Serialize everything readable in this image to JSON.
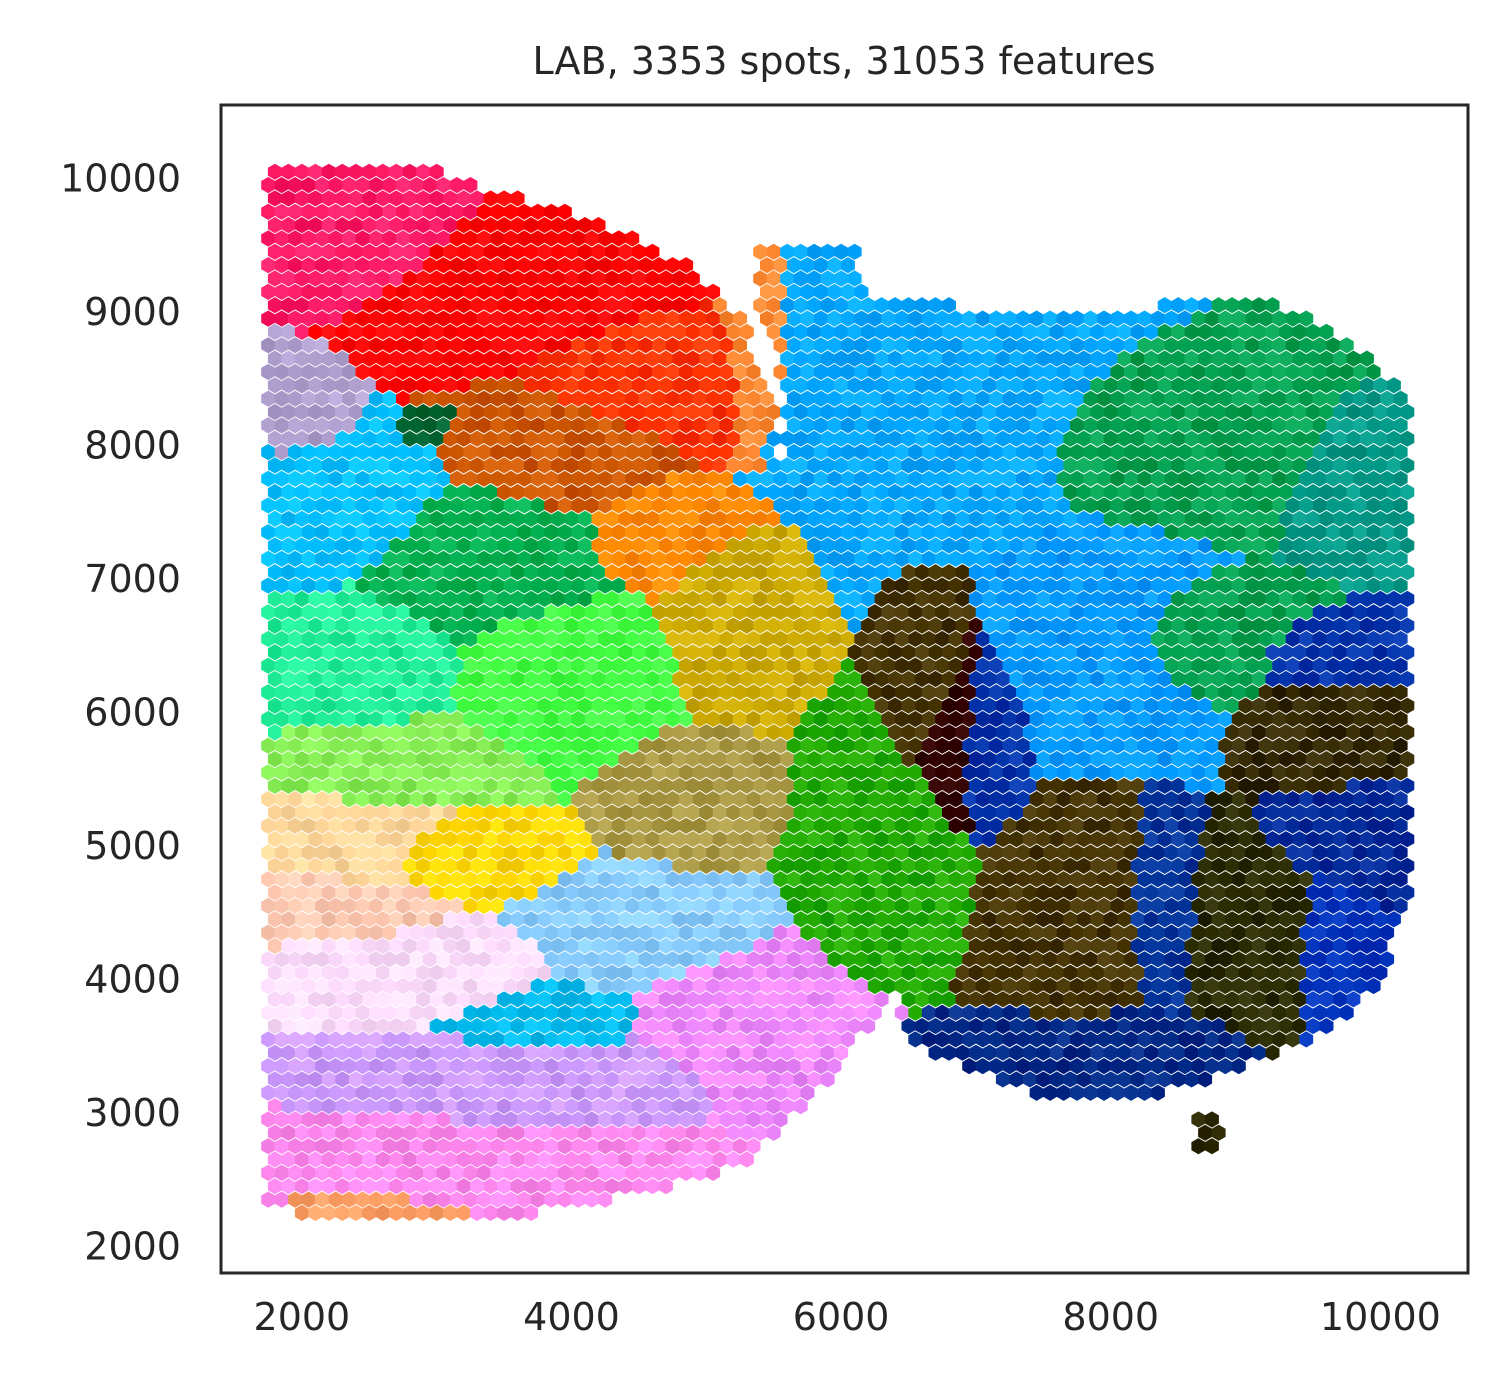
{
  "chart_data": {
    "type": "scatter",
    "title": "LAB, 3353 spots, 31053 features",
    "xlabel": "",
    "ylabel": "",
    "xlim": [
      1400,
      10650
    ],
    "ylim": [
      1800,
      10550
    ],
    "grid": false,
    "legend": "none",
    "x_ticks": [
      "2000",
      "4000",
      "6000",
      "8000",
      "10000"
    ],
    "y_ticks": [
      "2000",
      "3000",
      "4000",
      "5000",
      "6000",
      "7000",
      "8000",
      "9000",
      "10000"
    ],
    "spot_hex_radius": 60,
    "spot_grid": {
      "x_min": 1750,
      "x_max": 10250,
      "y_min": 2150,
      "y_max": 10150,
      "x_step": 100,
      "y_step": 100
    },
    "tissue_regions": [
      {
        "shape": "polygon",
        "points": [
          [
            1750,
            10150
          ],
          [
            2700,
            10150
          ],
          [
            3500,
            9900
          ],
          [
            4200,
            9700
          ],
          [
            4900,
            9350
          ],
          [
            5300,
            8900
          ],
          [
            5500,
            8300
          ],
          [
            5600,
            7500
          ],
          [
            5700,
            6600
          ],
          [
            5800,
            5800
          ],
          [
            6200,
            5000
          ],
          [
            6500,
            4300
          ],
          [
            6300,
            3800
          ],
          [
            6050,
            3400
          ],
          [
            5750,
            3050
          ],
          [
            5300,
            2600
          ],
          [
            4600,
            2400
          ],
          [
            3500,
            2200
          ],
          [
            2200,
            2150
          ],
          [
            1750,
            2350
          ]
        ]
      },
      {
        "shape": "polygon",
        "points": [
          [
            5400,
            9550
          ],
          [
            6100,
            9550
          ],
          [
            6200,
            9100
          ],
          [
            6900,
            9050
          ],
          [
            8000,
            9000
          ],
          [
            9000,
            9150
          ],
          [
            9600,
            8900
          ],
          [
            10000,
            8600
          ],
          [
            10250,
            8300
          ],
          [
            10250,
            4700
          ],
          [
            10000,
            4000
          ],
          [
            9700,
            3650
          ],
          [
            9200,
            3400
          ],
          [
            8400,
            3150
          ],
          [
            7600,
            3100
          ],
          [
            7000,
            3300
          ],
          [
            6500,
            3500
          ],
          [
            6350,
            4100
          ],
          [
            6200,
            4900
          ],
          [
            5800,
            5800
          ],
          [
            5650,
            6600
          ],
          [
            5600,
            7500
          ],
          [
            5600,
            8400
          ],
          [
            5400,
            9000
          ]
        ]
      },
      {
        "shape": "polygon",
        "points": [
          [
            8650,
            2750
          ],
          [
            8850,
            2750
          ],
          [
            8850,
            3000
          ],
          [
            8650,
            3000
          ]
        ]
      }
    ],
    "color_regions": [
      {
        "label": "pink-red",
        "color": "#ff1a66",
        "cx": 2500,
        "cy": 9700,
        "rx": 800,
        "ry": 500
      },
      {
        "label": "red",
        "color": "#ff0000",
        "cx": 3800,
        "cy": 9300,
        "rx": 1100,
        "ry": 550
      },
      {
        "label": "orange-red",
        "color": "#ff3300",
        "cx": 4700,
        "cy": 8500,
        "rx": 800,
        "ry": 500
      },
      {
        "label": "burnt-orange",
        "color": "#cc5500",
        "cx": 4000,
        "cy": 7950,
        "rx": 700,
        "ry": 400
      },
      {
        "label": "orange",
        "color": "#ff8800",
        "cx": 4800,
        "cy": 7350,
        "rx": 550,
        "ry": 350
      },
      {
        "label": "light-orange",
        "color": "#ff8833",
        "cx": 5350,
        "cy": 8700,
        "rx": 250,
        "ry": 700
      },
      {
        "label": "mauve",
        "color": "#b0a0d0",
        "cx": 1950,
        "cy": 8300,
        "rx": 300,
        "ry": 300
      },
      {
        "label": "dark-green-spot",
        "color": "#006633",
        "cx": 2950,
        "cy": 8150,
        "rx": 150,
        "ry": 100
      },
      {
        "label": "sky-blue-left",
        "color": "#00bfff",
        "cx": 2300,
        "cy": 7500,
        "rx": 650,
        "ry": 450
      },
      {
        "label": "green-mid",
        "color": "#00b050",
        "cx": 3300,
        "cy": 7100,
        "rx": 800,
        "ry": 500
      },
      {
        "label": "aqua-green",
        "color": "#22ee99",
        "cx": 2400,
        "cy": 6400,
        "rx": 700,
        "ry": 450
      },
      {
        "label": "lime",
        "color": "#44ff44",
        "cx": 3900,
        "cy": 6300,
        "rx": 650,
        "ry": 500
      },
      {
        "label": "yellow-green",
        "color": "#88ee55",
        "cx": 2700,
        "cy": 5600,
        "rx": 700,
        "ry": 300
      },
      {
        "label": "olive-yellow",
        "color": "#ccaa00",
        "cx": 5200,
        "cy": 6800,
        "rx": 400,
        "ry": 600
      },
      {
        "label": "olive-mid",
        "color": "#aa9944",
        "cx": 4900,
        "cy": 5300,
        "rx": 500,
        "ry": 400
      },
      {
        "label": "tan",
        "color": "#ffd79a",
        "cx": 2400,
        "cy": 5050,
        "rx": 700,
        "ry": 300
      },
      {
        "label": "gold",
        "color": "#ffd700",
        "cx": 3250,
        "cy": 4950,
        "rx": 600,
        "ry": 250
      },
      {
        "label": "peach",
        "color": "#ffc8b0",
        "cx": 2200,
        "cy": 4500,
        "rx": 600,
        "ry": 250
      },
      {
        "label": "lavender-pale",
        "color": "#ffddff",
        "cx": 2700,
        "cy": 4050,
        "rx": 900,
        "ry": 300
      },
      {
        "label": "light-blue",
        "color": "#88ccff",
        "cx": 4600,
        "cy": 4400,
        "rx": 700,
        "ry": 400
      },
      {
        "label": "cyan-blue",
        "color": "#00bbee",
        "cx": 3800,
        "cy": 3650,
        "rx": 600,
        "ry": 250
      },
      {
        "label": "lilac",
        "color": "#cc99ff",
        "cx": 3800,
        "cy": 3200,
        "rx": 1400,
        "ry": 350
      },
      {
        "label": "violet",
        "color": "#ee88ff",
        "cx": 5300,
        "cy": 3600,
        "rx": 700,
        "ry": 600
      },
      {
        "label": "pink",
        "color": "#ff88ee",
        "cx": 3300,
        "cy": 2650,
        "rx": 1600,
        "ry": 350
      },
      {
        "label": "salmon-edge",
        "color": "#ffa066",
        "cx": 2500,
        "cy": 2250,
        "rx": 700,
        "ry": 120
      },
      {
        "label": "azure",
        "color": "#00a6ff",
        "cx": 6600,
        "cy": 8500,
        "rx": 1200,
        "ry": 900
      },
      {
        "label": "teal",
        "color": "#009988",
        "cx": 9800,
        "cy": 7900,
        "rx": 500,
        "ry": 500
      },
      {
        "label": "green-right",
        "color": "#00a050",
        "cx": 8800,
        "cy": 8100,
        "rx": 1200,
        "ry": 500
      },
      {
        "label": "azure-mid",
        "color": "#0099ff",
        "cx": 7900,
        "cy": 6400,
        "rx": 700,
        "ry": 700
      },
      {
        "label": "green-band",
        "color": "#00a050",
        "cx": 8700,
        "cy": 6500,
        "rx": 700,
        "ry": 350
      },
      {
        "label": "bright-green",
        "color": "#22aa00",
        "cx": 6300,
        "cy": 4900,
        "rx": 500,
        "ry": 700
      },
      {
        "label": "dark-olive-left",
        "color": "#443300",
        "cx": 6700,
        "cy": 6200,
        "rx": 300,
        "ry": 600
      },
      {
        "label": "maroon-left",
        "color": "#330000",
        "cx": 6850,
        "cy": 5900,
        "rx": 300,
        "ry": 700
      },
      {
        "label": "navy-left",
        "color": "#0033aa",
        "cx": 7050,
        "cy": 5850,
        "rx": 300,
        "ry": 650
      },
      {
        "label": "dark-olive-center",
        "color": "#443300",
        "cx": 7800,
        "cy": 4500,
        "rx": 600,
        "ry": 800
      },
      {
        "label": "navy-bottom",
        "color": "#002a88",
        "cx": 7900,
        "cy": 3500,
        "rx": 900,
        "ry": 250
      },
      {
        "label": "navy-center",
        "color": "#003399",
        "cx": 8350,
        "cy": 4500,
        "rx": 250,
        "ry": 700
      },
      {
        "label": "dark-olive-right",
        "color": "#332800",
        "cx": 9600,
        "cy": 5900,
        "rx": 500,
        "ry": 450
      },
      {
        "label": "navy-right",
        "color": "#0033aa",
        "cx": 9600,
        "cy": 6400,
        "rx": 600,
        "ry": 250
      },
      {
        "label": "navy-right-lower",
        "color": "#002a99",
        "cx": 9800,
        "cy": 5100,
        "rx": 500,
        "ry": 350
      },
      {
        "label": "dark-olive-lower-right",
        "color": "#2a2a00",
        "cx": 9100,
        "cy": 4300,
        "rx": 500,
        "ry": 600
      },
      {
        "label": "navy-lower-right",
        "color": "#0033bb",
        "cx": 9600,
        "cy": 4200,
        "rx": 300,
        "ry": 500
      },
      {
        "label": "isolated-dark",
        "color": "#2a2600",
        "cx": 8750,
        "cy": 2850,
        "rx": 120,
        "ry": 120
      }
    ]
  }
}
